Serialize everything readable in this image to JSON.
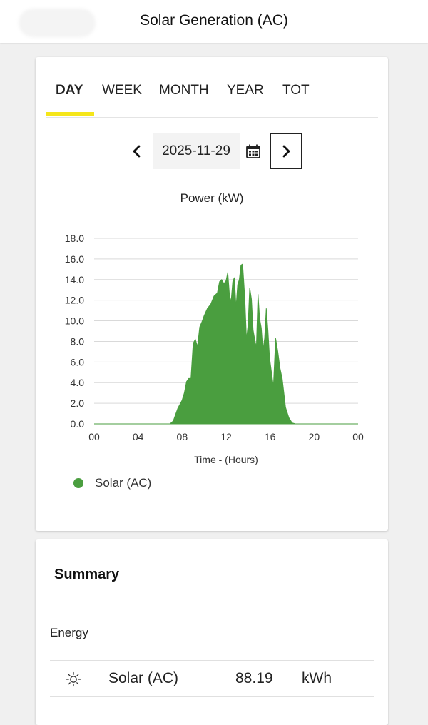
{
  "header": {
    "title": "Solar Generation (AC)"
  },
  "tabs": [
    {
      "label": "DAY",
      "active": true
    },
    {
      "label": "WEEK",
      "active": false
    },
    {
      "label": "MONTH",
      "active": false
    },
    {
      "label": "YEAR",
      "active": false
    },
    {
      "label": "TOT",
      "active": false
    }
  ],
  "date_nav": {
    "date": "2025-11-29",
    "prev_icon": "chevron-left-icon",
    "next_icon": "chevron-right-icon",
    "calendar_icon": "calendar-icon"
  },
  "chart_data": {
    "type": "area",
    "title": "Power (kW)",
    "xlabel": "Time - (Hours)",
    "ylabel": "",
    "x_ticks": [
      "00",
      "04",
      "08",
      "12",
      "16",
      "20",
      "00"
    ],
    "y_ticks": [
      "0.0",
      "2.0",
      "4.0",
      "6.0",
      "8.0",
      "10.0",
      "12.0",
      "14.0",
      "16.0",
      "18.0"
    ],
    "xlim": [
      0,
      24
    ],
    "ylim": [
      0,
      18
    ],
    "grid": true,
    "legend": "bottom-left",
    "series": [
      {
        "name": "Solar (AC)",
        "color": "#4a9e3f",
        "x": [
          0,
          6.9,
          7.2,
          7.6,
          8.0,
          8.2,
          8.4,
          8.6,
          8.8,
          9.0,
          9.2,
          9.4,
          9.6,
          9.8,
          10.0,
          10.3,
          10.6,
          10.9,
          11.2,
          11.4,
          11.6,
          11.8,
          12.0,
          12.15,
          12.3,
          12.45,
          12.6,
          12.75,
          12.9,
          13.05,
          13.2,
          13.35,
          13.5,
          13.7,
          13.85,
          14.0,
          14.15,
          14.3,
          14.45,
          14.6,
          14.75,
          14.9,
          15.05,
          15.2,
          15.35,
          15.5,
          15.65,
          15.8,
          15.95,
          16.1,
          16.3,
          16.5,
          16.7,
          16.9,
          17.1,
          17.4,
          17.7,
          18.0,
          18.3,
          18.7,
          24
        ],
        "values": [
          0,
          0,
          0.3,
          1.5,
          2.3,
          3.0,
          4.1,
          4.4,
          4.4,
          7.8,
          8.2,
          7.5,
          9.4,
          9.9,
          10.5,
          11.2,
          11.6,
          12.4,
          12.7,
          13.8,
          14.0,
          13.6,
          13.9,
          14.7,
          12.6,
          11.8,
          13.8,
          14.2,
          11.3,
          13.5,
          14.0,
          15.4,
          15.5,
          12.2,
          8.2,
          9.6,
          13.2,
          12.1,
          9.1,
          8.2,
          7.4,
          12.6,
          10.2,
          9.3,
          7.1,
          8.3,
          11.2,
          9.1,
          6.4,
          5.2,
          3.6,
          8.3,
          7.0,
          5.4,
          4.4,
          1.6,
          0.6,
          0.1,
          0,
          0,
          0
        ]
      }
    ]
  },
  "legend": {
    "label": "Solar (AC)"
  },
  "summary": {
    "title": "Summary",
    "energy_label": "Energy",
    "rows": [
      {
        "icon": "sun-icon",
        "name": "Solar (AC)",
        "value": "88.19",
        "unit": "kWh"
      }
    ]
  }
}
